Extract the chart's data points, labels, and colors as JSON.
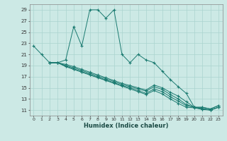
{
  "xlabel": "Humidex (Indice chaleur)",
  "ylabel": "",
  "xlim": [
    -0.5,
    23.5
  ],
  "ylim": [
    10,
    30
  ],
  "yticks": [
    11,
    13,
    15,
    17,
    19,
    21,
    23,
    25,
    27,
    29
  ],
  "xticks": [
    0,
    1,
    2,
    3,
    4,
    5,
    6,
    7,
    8,
    9,
    10,
    11,
    12,
    13,
    14,
    15,
    16,
    17,
    18,
    19,
    20,
    21,
    22,
    23
  ],
  "background_color": "#cce9e5",
  "grid_color": "#aad4cf",
  "line_color": "#1a7a70",
  "s1_x": [
    0,
    1,
    2,
    3,
    4,
    5,
    6,
    7,
    8,
    9,
    10,
    11,
    12,
    13,
    14,
    15,
    16,
    17,
    18,
    19,
    20,
    21,
    22,
    23
  ],
  "s1_y": [
    22.5,
    21.0,
    19.5,
    19.5,
    20.0,
    26.0,
    22.5,
    29.0,
    29.0,
    27.5,
    29.0,
    21.0,
    19.5,
    21.0,
    20.0,
    19.5,
    18.0,
    16.5,
    15.2,
    14.0,
    11.5,
    11.5,
    11.2,
    11.8
  ],
  "s2_x": [
    2,
    3,
    4,
    5,
    6,
    7,
    8,
    9,
    10,
    11,
    12,
    13,
    14,
    15,
    16,
    17,
    18,
    19,
    20,
    21,
    22,
    23
  ],
  "s2_y": [
    19.5,
    19.5,
    19.2,
    18.8,
    18.3,
    17.8,
    17.3,
    16.8,
    16.3,
    15.8,
    15.4,
    15.0,
    14.6,
    15.5,
    15.0,
    14.2,
    13.5,
    12.5,
    11.5,
    11.5,
    11.2,
    11.8
  ],
  "s3_x": [
    2,
    3,
    4,
    5,
    6,
    7,
    8,
    9,
    10,
    11,
    12,
    13,
    14,
    15,
    16,
    17,
    18,
    19,
    20,
    21,
    22,
    23
  ],
  "s3_y": [
    19.5,
    19.5,
    19.0,
    18.6,
    18.1,
    17.6,
    17.1,
    16.6,
    16.1,
    15.6,
    15.2,
    14.8,
    14.4,
    15.2,
    14.7,
    13.8,
    13.0,
    12.0,
    11.5,
    11.3,
    11.0,
    11.5
  ],
  "s4_x": [
    2,
    3,
    4,
    5,
    6,
    7,
    8,
    9,
    10,
    11,
    12,
    13,
    14,
    15,
    16,
    17,
    18,
    19,
    20,
    21,
    22,
    23
  ],
  "s4_y": [
    19.5,
    19.5,
    18.9,
    18.4,
    17.9,
    17.4,
    16.9,
    16.4,
    15.9,
    15.4,
    15.0,
    14.5,
    14.0,
    14.8,
    14.3,
    13.4,
    12.6,
    11.8,
    11.5,
    11.2,
    11.0,
    11.5
  ],
  "s5_x": [
    2,
    3,
    4,
    5,
    6,
    7,
    8,
    9,
    10,
    11,
    12,
    13,
    14,
    15,
    16,
    17,
    18,
    19,
    20,
    21,
    22,
    23
  ],
  "s5_y": [
    19.5,
    19.5,
    18.8,
    18.3,
    17.8,
    17.3,
    16.8,
    16.3,
    15.8,
    15.3,
    14.8,
    14.3,
    13.8,
    14.5,
    13.9,
    13.0,
    12.2,
    11.5,
    11.4,
    11.1,
    11.0,
    11.5
  ]
}
